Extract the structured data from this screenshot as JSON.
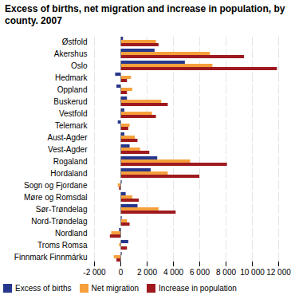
{
  "chart_data": {
    "type": "bar",
    "title": "Excess of births, net migration and increase in population, by county. 2007",
    "orientation": "horizontal",
    "grid": true,
    "legend": "bottom",
    "categories": [
      "Østfold",
      "Akershus",
      "Oslo",
      "Hedmark",
      "Oppland",
      "Buskerud",
      "Vestfold",
      "Telemark",
      "Aust-Agder",
      "Vest-Agder",
      "Rogaland",
      "Hordaland",
      "Sogn og Fjordane",
      "Møre og Romsdal",
      "Sør-Trøndelag",
      "Nord-Trøndelag",
      "Nordland",
      "Troms Romsa",
      "Finnmark Finnmárku"
    ],
    "series": [
      {
        "name": "Excess of births",
        "color": "#27378c",
        "values": [
          200,
          2600,
          4900,
          -400,
          -300,
          500,
          300,
          -200,
          300,
          700,
          2800,
          2300,
          100,
          400,
          1300,
          100,
          -100,
          600,
          100
        ]
      },
      {
        "name": "Net migration",
        "color": "#f5a03c",
        "values": [
          2700,
          6800,
          7000,
          800,
          900,
          3100,
          2400,
          700,
          1100,
          1500,
          5300,
          3600,
          -200,
          900,
          2900,
          500,
          -700,
          -100,
          -500
        ]
      },
      {
        "name": "Increase in population",
        "color": "#9e1a1e",
        "values": [
          2900,
          9400,
          11900,
          500,
          500,
          3600,
          2700,
          600,
          1300,
          2200,
          8100,
          6000,
          -100,
          1400,
          4200,
          700,
          -800,
          500,
          -300
        ]
      }
    ],
    "xlim": [
      -2000,
      12000
    ],
    "xticks": [
      {
        "value": -2000,
        "label": "-2 000"
      },
      0,
      {
        "value": 2000,
        "label": "2 000"
      },
      {
        "value": 4000,
        "label": "4 000"
      },
      {
        "value": 6000,
        "label": "6 000"
      },
      {
        "value": 8000,
        "label": "8 000"
      },
      {
        "value": 10000,
        "label": "10 000"
      },
      {
        "value": 12000,
        "label": "12 000"
      }
    ]
  }
}
